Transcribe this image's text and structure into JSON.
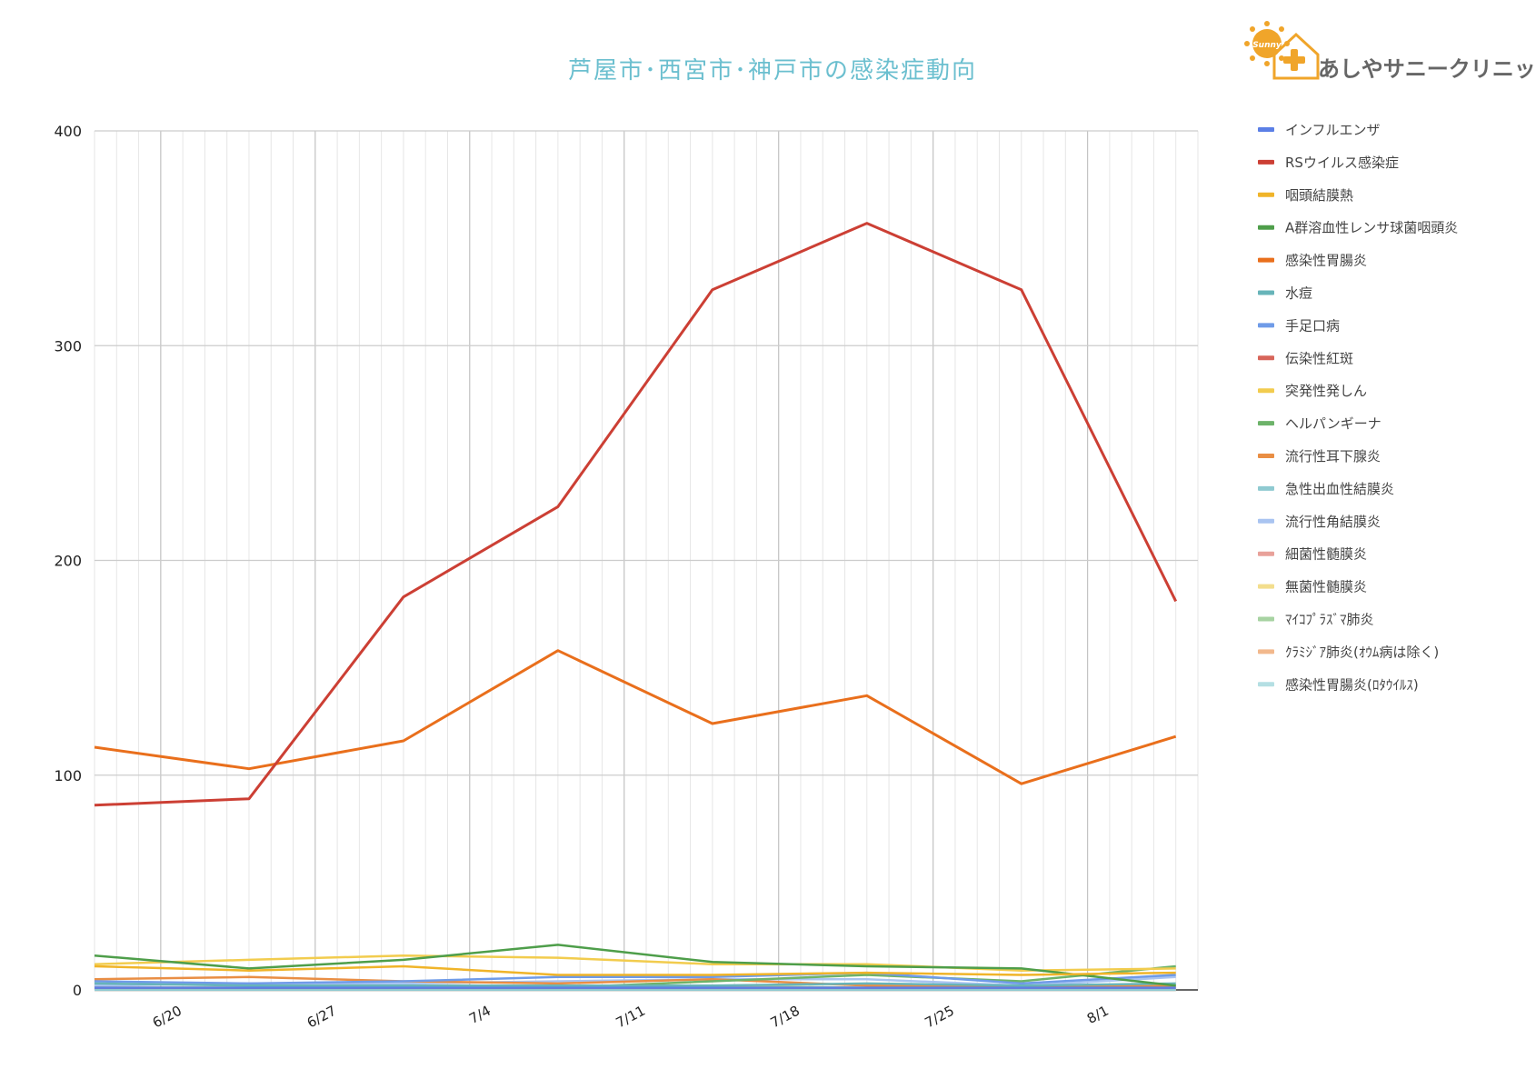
{
  "logo": {
    "badge_text": "Sunny",
    "name": "あしやサニークリニック"
  },
  "chart_data": {
    "type": "line",
    "title": "芦屋市･西宮市･神戸市の感染症動向",
    "xlabel": "",
    "ylabel": "",
    "x_range": [
      "6/16",
      "8/5"
    ],
    "ylim": [
      0,
      400
    ],
    "y_ticks": [
      0,
      100,
      200,
      300,
      400
    ],
    "x_tick_labels": [
      "6/20",
      "6/27",
      "7/4",
      "7/11",
      "7/18",
      "7/25",
      "8/1"
    ],
    "grid": true,
    "legend_position": "right",
    "x": [
      "6/16",
      "6/23",
      "6/30",
      "7/7",
      "7/14",
      "7/21",
      "7/28",
      "8/4"
    ],
    "series": [
      {
        "name": "インフルエンザ",
        "color": "#5b7fe6",
        "values": [
          1,
          1,
          1,
          1,
          1,
          1,
          1,
          1
        ]
      },
      {
        "name": "RSウイルス感染症",
        "color": "#cc3f34",
        "values": [
          86,
          89,
          183,
          225,
          326,
          357,
          326,
          181
        ]
      },
      {
        "name": "咽頭結膜熱",
        "color": "#f0b429",
        "values": [
          11,
          9,
          11,
          7,
          7,
          8,
          7,
          8
        ]
      },
      {
        "name": "A群溶血性レンサ球菌咽頭炎",
        "color": "#4e9e4a",
        "values": [
          16,
          10,
          14,
          21,
          13,
          11,
          10,
          2
        ]
      },
      {
        "name": "感染性胃腸炎",
        "color": "#e96f1c",
        "values": [
          113,
          103,
          116,
          158,
          124,
          137,
          96,
          118
        ]
      },
      {
        "name": "水痘",
        "color": "#67b4b9",
        "values": [
          3,
          2,
          2,
          2,
          2,
          3,
          2,
          3
        ]
      },
      {
        "name": "手足口病",
        "color": "#6f9be8",
        "values": [
          4,
          3,
          4,
          6,
          6,
          8,
          3,
          7
        ]
      },
      {
        "name": "伝染性紅斑",
        "color": "#d7655a",
        "values": [
          1,
          1,
          1,
          1,
          1,
          1,
          1,
          1
        ]
      },
      {
        "name": "突発性発しん",
        "color": "#f2cc4e",
        "values": [
          12,
          14,
          16,
          15,
          12,
          12,
          9,
          10
        ]
      },
      {
        "name": "ヘルパンギーナ",
        "color": "#6db36a",
        "values": [
          1,
          1,
          1,
          1,
          4,
          7,
          4,
          11
        ]
      },
      {
        "name": "流行性耳下腺炎",
        "color": "#e98e44",
        "values": [
          5,
          6,
          4,
          3,
          5,
          2,
          2,
          2
        ]
      },
      {
        "name": "急性出血性結膜炎",
        "color": "#8fcad1",
        "values": [
          0,
          0,
          0,
          0,
          0,
          0,
          0,
          0
        ]
      },
      {
        "name": "流行性角結膜炎",
        "color": "#a9c4f1",
        "values": [
          2,
          3,
          3,
          4,
          5,
          5,
          2,
          6
        ]
      },
      {
        "name": "細菌性髄膜炎",
        "color": "#e8a19a",
        "values": [
          0,
          0,
          0,
          0,
          0,
          0,
          0,
          0
        ]
      },
      {
        "name": "無菌性髄膜炎",
        "color": "#f3de8d",
        "values": [
          0,
          0,
          0,
          0,
          0,
          0,
          0,
          0
        ]
      },
      {
        "name": "ﾏｲｺﾌﾟﾗｽﾞﾏ肺炎",
        "color": "#a7d3a2",
        "values": [
          1,
          1,
          1,
          2,
          2,
          1,
          1,
          2
        ]
      },
      {
        "name": "ｸﾗﾐｼﾞｱ肺炎(ｵｳﾑ病は除く)",
        "color": "#f2b88c",
        "values": [
          0,
          0,
          0,
          0,
          0,
          0,
          0,
          0
        ]
      },
      {
        "name": "感染性胃腸炎(ﾛﾀｳｲﾙｽ)",
        "color": "#b4dfe3",
        "values": [
          0,
          0,
          0,
          0,
          0,
          0,
          0,
          0
        ]
      }
    ]
  }
}
